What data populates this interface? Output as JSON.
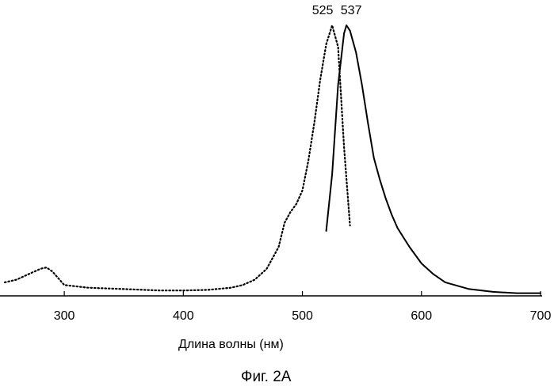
{
  "chart_data": {
    "type": "line",
    "xlabel": "Длина волны (нм)",
    "ylabel": "",
    "xlim": [
      250,
      700
    ],
    "ylim": [
      0,
      1
    ],
    "x_ticks": [
      300,
      400,
      500,
      600,
      700
    ],
    "grid": false,
    "legend": "none",
    "annotations": [
      {
        "text": "525",
        "x": 525
      },
      {
        "text": "537",
        "x": 537
      }
    ],
    "series": [
      {
        "style": "dotted",
        "color": "#000000",
        "x": [
          250,
          260,
          270,
          280,
          285,
          290,
          300,
          320,
          350,
          380,
          400,
          420,
          440,
          450,
          460,
          470,
          480,
          485,
          490,
          495,
          500,
          505,
          510,
          515,
          520,
          525,
          530,
          535,
          540
        ],
        "y": [
          0.05,
          0.06,
          0.08,
          0.1,
          0.105,
          0.09,
          0.04,
          0.03,
          0.025,
          0.02,
          0.02,
          0.022,
          0.03,
          0.04,
          0.06,
          0.1,
          0.18,
          0.27,
          0.31,
          0.34,
          0.39,
          0.5,
          0.64,
          0.8,
          0.93,
          1.0,
          0.92,
          0.55,
          0.26
        ]
      },
      {
        "style": "solid",
        "color": "#000000",
        "x": [
          520,
          525,
          530,
          535,
          537,
          540,
          545,
          550,
          555,
          560,
          565,
          570,
          575,
          580,
          590,
          600,
          610,
          620,
          640,
          660,
          680,
          700
        ],
        "y": [
          0.24,
          0.45,
          0.78,
          0.97,
          1.0,
          0.98,
          0.9,
          0.78,
          0.64,
          0.51,
          0.43,
          0.36,
          0.3,
          0.25,
          0.18,
          0.12,
          0.08,
          0.05,
          0.025,
          0.015,
          0.01,
          0.01
        ]
      }
    ]
  },
  "caption": "Фиг. 2А"
}
